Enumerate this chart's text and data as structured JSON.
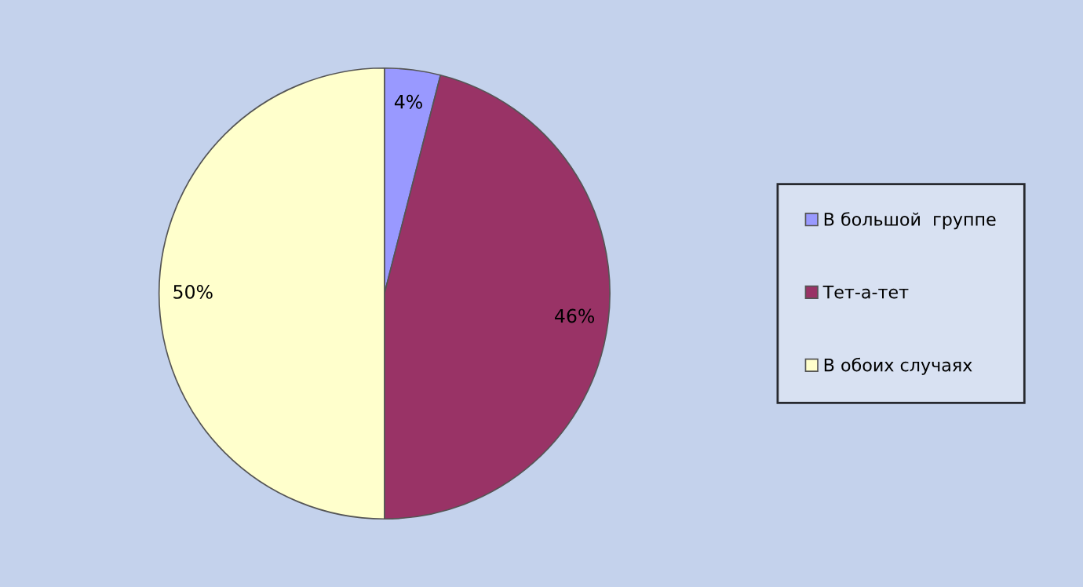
{
  "chart_data": {
    "type": "pie",
    "categories": [
      "В большой  группе",
      "Тет-а-тет",
      "В обоих случаях"
    ],
    "values": [
      4,
      46,
      50
    ],
    "colors": [
      "#9999ff",
      "#993366",
      "#ffffcc"
    ],
    "value_labels": [
      "4%",
      "46%",
      "50%"
    ],
    "legend": "right"
  }
}
